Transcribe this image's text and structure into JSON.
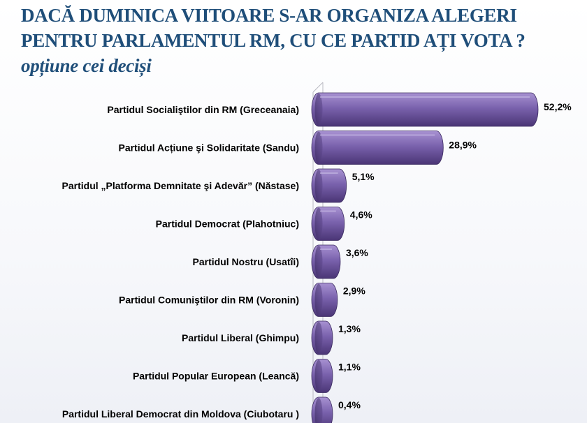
{
  "title": {
    "main": "DACĂ  DUMINICA VIITOARE S-AR ORGANIZA ALEGERI PENTRU PARLAMENTUL RM, CU CE PARTID AȚI VOTA ?",
    "sub": "opțiune  cei deciși"
  },
  "colors": {
    "title": "#1f4e79",
    "bar_light": "#9a82c6",
    "bar_mid": "#6e56a0",
    "bar_dark": "#3f2d66"
  },
  "chart_data": {
    "type": "bar",
    "orientation": "horizontal",
    "title": "DACĂ  DUMINICA VIITOARE S-AR ORGANIZA ALEGERI PENTRU PARLAMENTUL RM, CU CE PARTID AȚI VOTA ? opțiune  cei deciși",
    "categories": [
      "Partidul Socialiştilor din RM  (Greceanaia)",
      "Partidul Acțiune şi Solidaritate (Sandu)",
      "Partidul „Platforma Demnitate şi Adevăr” (Năstase)",
      "Partidul Democrat (Plahotniuc)",
      "Partidul Nostru  (Usatîi)",
      "Partidul Comuniştilor din RM  (Voronin)",
      "Partidul Liberal (Ghimpu)",
      "Partidul Popular European  (Leancă)",
      "Partidul Liberal Democrat din Moldova (Ciubotaru )"
    ],
    "values": [
      52.2,
      28.9,
      5.1,
      4.6,
      3.6,
      2.9,
      1.3,
      1.1,
      0.4
    ],
    "value_labels": [
      "52,2%",
      "28,9%",
      "5,1%",
      "4,6%",
      "3,6%",
      "2,9%",
      "1,3%",
      "1,1%",
      "0,4%"
    ],
    "unit": "%",
    "xlim": [
      0,
      55
    ],
    "grid": false,
    "legend": "none"
  }
}
